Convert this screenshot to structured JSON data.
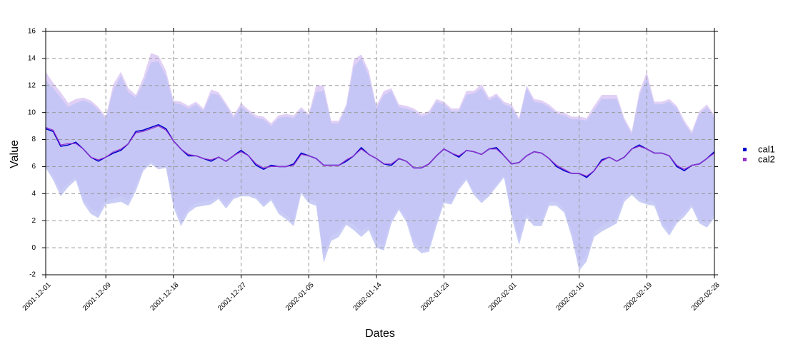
{
  "chart_data": {
    "type": "line",
    "xlabel": "Dates",
    "ylabel": "Value",
    "xlim": [
      "2001-12-01",
      "2002-02-28"
    ],
    "ylim": [
      -2,
      16
    ],
    "y_ticks": [
      -2,
      0,
      2,
      4,
      6,
      8,
      10,
      12,
      14,
      16
    ],
    "x_ticks": [
      "2001-12-01",
      "2001-12-09",
      "2001-12-18",
      "2001-12-27",
      "2002-01-05",
      "2002-01-14",
      "2002-01-23",
      "2002-02-01",
      "2002-02-10",
      "2002-02-19",
      "2002-02-28"
    ],
    "grid": true,
    "legend_position": "right",
    "x": [
      "2001-12-01",
      "2001-12-02",
      "2001-12-03",
      "2001-12-04",
      "2001-12-05",
      "2001-12-06",
      "2001-12-07",
      "2001-12-08",
      "2001-12-09",
      "2001-12-10",
      "2001-12-11",
      "2001-12-12",
      "2001-12-13",
      "2001-12-14",
      "2001-12-15",
      "2001-12-16",
      "2001-12-17",
      "2001-12-18",
      "2001-12-19",
      "2001-12-20",
      "2001-12-21",
      "2001-12-22",
      "2001-12-23",
      "2001-12-24",
      "2001-12-25",
      "2001-12-26",
      "2001-12-27",
      "2001-12-28",
      "2001-12-29",
      "2001-12-30",
      "2001-12-31",
      "2002-01-01",
      "2002-01-02",
      "2002-01-03",
      "2002-01-04",
      "2002-01-05",
      "2002-01-06",
      "2002-01-07",
      "2002-01-08",
      "2002-01-09",
      "2002-01-10",
      "2002-01-11",
      "2002-01-12",
      "2002-01-13",
      "2002-01-14",
      "2002-01-15",
      "2002-01-16",
      "2002-01-17",
      "2002-01-18",
      "2002-01-19",
      "2002-01-20",
      "2002-01-21",
      "2002-01-22",
      "2002-01-23",
      "2002-01-24",
      "2002-01-25",
      "2002-01-26",
      "2002-01-27",
      "2002-01-28",
      "2002-01-29",
      "2002-01-30",
      "2002-01-31",
      "2002-02-01",
      "2002-02-02",
      "2002-02-03",
      "2002-02-04",
      "2002-02-05",
      "2002-02-06",
      "2002-02-07",
      "2002-02-08",
      "2002-02-09",
      "2002-02-10",
      "2002-02-11",
      "2002-02-12",
      "2002-02-13",
      "2002-02-14",
      "2002-02-15",
      "2002-02-16",
      "2002-02-17",
      "2002-02-18",
      "2002-02-19",
      "2002-02-20",
      "2002-02-21",
      "2002-02-22",
      "2002-02-23",
      "2002-02-24",
      "2002-02-25",
      "2002-02-26",
      "2002-02-27",
      "2002-02-28"
    ],
    "series": [
      {
        "name": "cal1",
        "color": "#0000cc",
        "band_color": "#c0c4f4",
        "values": [
          8.8,
          8.6,
          7.5,
          7.6,
          7.8,
          7.3,
          6.7,
          6.4,
          6.7,
          7.0,
          7.2,
          7.7,
          8.6,
          8.7,
          8.9,
          9.1,
          8.8,
          7.9,
          7.3,
          6.8,
          6.8,
          6.6,
          6.4,
          6.7,
          6.4,
          6.8,
          7.2,
          6.8,
          6.1,
          5.8,
          6.1,
          6.0,
          6.0,
          6.2,
          7.0,
          6.8,
          6.6,
          6.1,
          6.1,
          6.1,
          6.4,
          6.8,
          7.4,
          6.9,
          6.6,
          6.2,
          6.1,
          6.6,
          6.4,
          5.9,
          5.9,
          6.2,
          6.8,
          7.3,
          7.0,
          6.7,
          7.2,
          7.1,
          6.9,
          7.3,
          7.4,
          6.8,
          6.2,
          6.3,
          6.8,
          7.1,
          7.0,
          6.6,
          6.0,
          5.7,
          5.5,
          5.5,
          5.2,
          5.7,
          6.5,
          6.7,
          6.4,
          6.7,
          7.3,
          7.6,
          7.3,
          7.0,
          7.0,
          6.8,
          6.0,
          5.7,
          6.1,
          6.2,
          6.6,
          7.1
        ],
        "lower": [
          5.9,
          5.0,
          3.8,
          4.5,
          5.0,
          3.3,
          2.5,
          2.2,
          3.2,
          3.3,
          3.4,
          3.1,
          4.2,
          5.7,
          6.2,
          5.8,
          5.9,
          3.0,
          1.6,
          2.6,
          3.0,
          3.1,
          3.2,
          3.6,
          2.9,
          3.6,
          3.8,
          3.8,
          3.6,
          3.0,
          3.5,
          2.5,
          2.1,
          1.6,
          4.0,
          3.3,
          3.1,
          -1.1,
          0.5,
          0.8,
          1.7,
          1.3,
          0.8,
          1.3,
          0.0,
          -0.2,
          1.8,
          2.8,
          1.9,
          0.1,
          -0.4,
          -0.3,
          1.6,
          3.3,
          3.2,
          4.3,
          5.0,
          3.9,
          3.3,
          3.8,
          4.5,
          5.2,
          2.3,
          0.2,
          2.2,
          1.6,
          1.6,
          3.1,
          3.1,
          2.6,
          0.8,
          -1.7,
          -1.0,
          0.8,
          1.2,
          1.5,
          1.8,
          3.4,
          3.9,
          3.4,
          3.2,
          3.1,
          1.6,
          0.9,
          1.8,
          2.3,
          3.0,
          1.8,
          1.5,
          2.2
        ],
        "upper": [
          12.4,
          11.8,
          11.1,
          10.4,
          10.7,
          10.9,
          10.7,
          10.2,
          9.5,
          11.7,
          12.7,
          11.5,
          11.1,
          12.2,
          13.7,
          13.8,
          12.7,
          10.7,
          10.6,
          10.3,
          10.6,
          10.1,
          11.4,
          11.3,
          10.5,
          9.6,
          10.5,
          10.0,
          9.6,
          9.5,
          9.0,
          9.6,
          9.7,
          9.6,
          10.2,
          9.7,
          11.5,
          11.6,
          9.2,
          9.2,
          10.4,
          13.4,
          14.0,
          12.7,
          10.3,
          11.3,
          11.6,
          10.4,
          10.3,
          10.1,
          9.7,
          9.9,
          10.8,
          10.6,
          10.1,
          10.1,
          11.3,
          11.4,
          11.8,
          10.9,
          11.2,
          10.6,
          10.4,
          9.4,
          11.8,
          10.8,
          10.7,
          10.4,
          9.9,
          9.8,
          9.5,
          9.5,
          9.4,
          10.2,
          11.0,
          11.0,
          11.0,
          9.4,
          8.4,
          11.2,
          12.6,
          10.6,
          10.6,
          10.8,
          10.3,
          9.2,
          8.4,
          9.9,
          10.4,
          9.6
        ]
      },
      {
        "name": "cal2",
        "color": "#9933cc",
        "band_color": "#dcc8f4",
        "values": [
          8.9,
          8.7,
          7.6,
          7.7,
          7.7,
          7.3,
          6.7,
          6.5,
          6.7,
          7.1,
          7.3,
          7.7,
          8.5,
          8.6,
          8.8,
          9.0,
          8.7,
          7.9,
          7.3,
          6.9,
          6.8,
          6.6,
          6.5,
          6.7,
          6.4,
          6.8,
          7.1,
          6.8,
          6.2,
          5.9,
          6.0,
          6.0,
          6.0,
          6.1,
          6.9,
          6.8,
          6.6,
          6.1,
          6.1,
          6.1,
          6.5,
          6.8,
          7.3,
          6.9,
          6.6,
          6.2,
          6.2,
          6.6,
          6.4,
          5.9,
          5.9,
          6.2,
          6.8,
          7.3,
          7.0,
          6.8,
          7.2,
          7.1,
          6.9,
          7.3,
          7.3,
          6.8,
          6.2,
          6.3,
          6.8,
          7.1,
          7.0,
          6.6,
          6.1,
          5.8,
          5.5,
          5.5,
          5.3,
          5.7,
          6.4,
          6.7,
          6.4,
          6.7,
          7.3,
          7.5,
          7.3,
          7.0,
          7.0,
          6.8,
          6.1,
          5.8,
          6.1,
          6.2,
          6.6,
          7.0
        ],
        "lower": [
          6.2,
          5.3,
          4.2,
          4.8,
          5.2,
          3.6,
          2.9,
          2.6,
          3.5,
          3.6,
          3.8,
          3.5,
          4.6,
          5.9,
          6.4,
          6.0,
          6.1,
          3.4,
          2.0,
          2.9,
          3.3,
          3.4,
          3.5,
          3.8,
          3.2,
          3.8,
          4.0,
          4.0,
          3.8,
          3.2,
          3.7,
          2.8,
          2.4,
          2.0,
          4.2,
          3.6,
          3.4,
          -0.6,
          0.9,
          1.2,
          2.0,
          1.7,
          1.2,
          1.6,
          0.4,
          0.2,
          2.1,
          3.0,
          2.2,
          0.5,
          0.0,
          0.1,
          1.9,
          3.5,
          3.4,
          4.5,
          5.2,
          4.1,
          3.6,
          4.0,
          4.7,
          5.4,
          2.6,
          0.6,
          2.5,
          2.0,
          2.0,
          3.4,
          3.4,
          2.9,
          1.2,
          -1.2,
          -0.5,
          1.2,
          1.6,
          1.9,
          2.2,
          3.7,
          4.1,
          3.7,
          3.5,
          3.4,
          1.9,
          1.2,
          2.1,
          2.6,
          3.2,
          2.1,
          1.8,
          2.5
        ],
        "upper": [
          13.0,
          12.2,
          11.5,
          10.7,
          11.0,
          11.1,
          10.9,
          10.4,
          9.7,
          12.1,
          13.0,
          11.8,
          11.3,
          12.6,
          14.4,
          14.2,
          13.1,
          10.9,
          10.8,
          10.5,
          10.8,
          10.3,
          11.7,
          11.5,
          10.7,
          9.8,
          10.7,
          10.2,
          9.8,
          9.7,
          9.2,
          9.8,
          9.9,
          9.8,
          10.4,
          9.9,
          12.0,
          12.0,
          9.4,
          9.4,
          10.6,
          13.9,
          14.3,
          13.1,
          10.5,
          11.6,
          11.8,
          10.6,
          10.5,
          10.3,
          9.9,
          10.1,
          11.0,
          10.8,
          10.3,
          10.3,
          11.6,
          11.6,
          12.1,
          11.1,
          11.4,
          10.8,
          10.6,
          9.6,
          12.0,
          11.0,
          10.9,
          10.6,
          10.1,
          10.0,
          9.7,
          9.7,
          9.6,
          10.5,
          11.3,
          11.3,
          11.3,
          9.6,
          8.6,
          11.5,
          13.0,
          10.8,
          10.8,
          11.0,
          10.5,
          9.4,
          8.6,
          10.1,
          10.6,
          9.8
        ]
      }
    ]
  }
}
